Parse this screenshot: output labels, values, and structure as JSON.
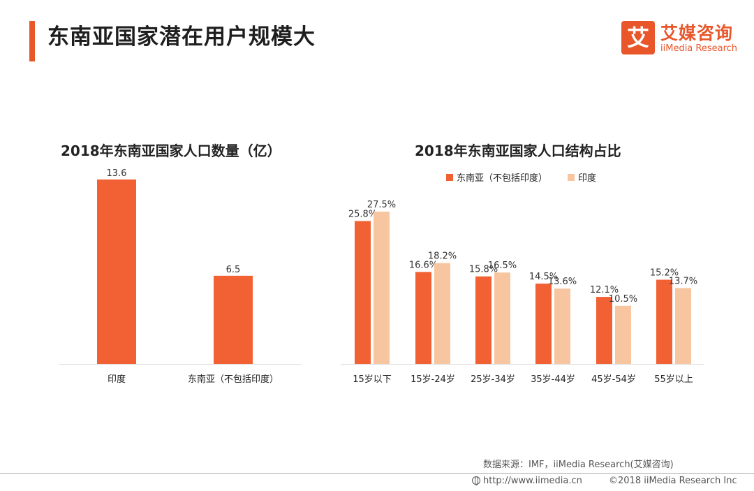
{
  "page": {
    "title": "东南亚国家潜在用户规模大",
    "logo_glyph": "艾",
    "logo_cn": "艾媒咨询",
    "logo_en": "iiMedia Research",
    "source": "数据来源：IMF，iiMedia Research(艾媒咨询)",
    "url": "http://www.iimedia.cn",
    "copyright": "©2018  iiMedia Research  Inc",
    "accent_color": "#e8562a"
  },
  "chart_data": [
    {
      "type": "bar",
      "title": "2018年东南亚国家人口数量（亿）",
      "categories": [
        "印度",
        "东南亚（不包括印度）"
      ],
      "values": [
        13.6,
        6.5
      ],
      "value_labels": [
        "13.6",
        "6.5"
      ],
      "color": "#f26133",
      "xlabel": "",
      "ylabel": "",
      "ylim": [
        0,
        14.5
      ]
    },
    {
      "type": "bar",
      "title": "2018年东南亚国家人口结构占比",
      "categories": [
        "15岁以下",
        "15岁-24岁",
        "25岁-34岁",
        "35岁-44岁",
        "45岁-54岁",
        "55岁以上"
      ],
      "series": [
        {
          "name": "东南亚（不包括印度）",
          "color": "#f26133",
          "values": [
            25.8,
            16.6,
            15.8,
            14.5,
            12.1,
            15.2
          ],
          "labels": [
            "25.8%",
            "16.6%",
            "15.8%",
            "14.5%",
            "12.1%",
            "15.2%"
          ]
        },
        {
          "name": "印度",
          "color": "#f7c6a0",
          "values": [
            27.5,
            18.2,
            16.5,
            13.6,
            10.5,
            13.7
          ],
          "labels": [
            "27.5%",
            "18.2%",
            "16.5%",
            "13.6%",
            "10.5%",
            "13.7%"
          ]
        }
      ],
      "legend": "top",
      "xlabel": "",
      "ylabel": "",
      "ylim": [
        0,
        30
      ]
    }
  ]
}
